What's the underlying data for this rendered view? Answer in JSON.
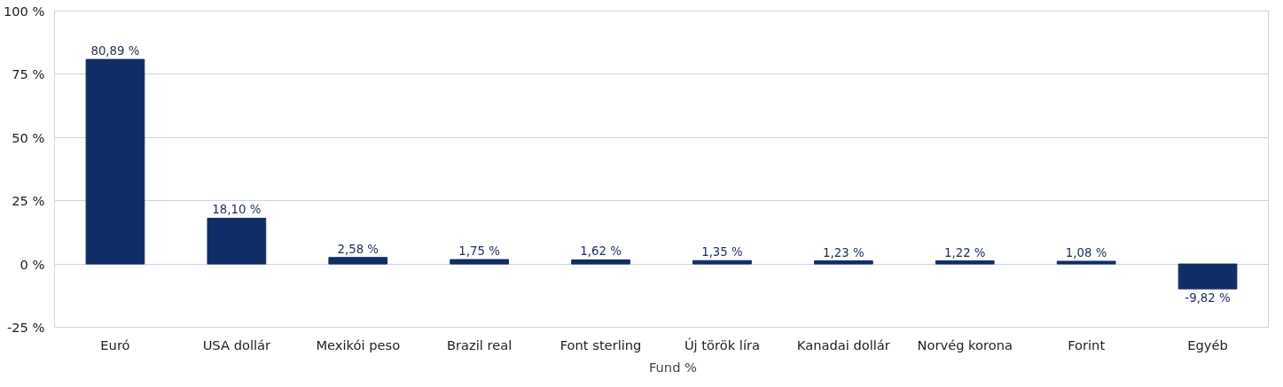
{
  "chart_data": {
    "type": "bar",
    "categories": [
      "Euró",
      "USA dollár",
      "Mexikói peso",
      "Brazil real",
      "Font sterling",
      "Új török líra",
      "Kanadai dollár",
      "Norvég korona",
      "Forint",
      "Egyéb"
    ],
    "series": [
      {
        "name": "Fund %",
        "color": "#112d65",
        "values": [
          80.89,
          18.1,
          2.58,
          1.75,
          1.62,
          1.35,
          1.23,
          1.22,
          1.08,
          -9.82
        ],
        "value_labels": [
          "80,89 %",
          "18,10 %",
          "2,58 %",
          "1,75 %",
          "1,62 %",
          "1,35 %",
          "1,23 %",
          "1,22 %",
          "1,08 %",
          "-9,82 %"
        ]
      }
    ],
    "ylim": [
      -25,
      100
    ],
    "yticks": [
      {
        "value": -25,
        "label": "-25 %"
      },
      {
        "value": 0,
        "label": "0 %"
      },
      {
        "value": 25,
        "label": "25 %"
      },
      {
        "value": 50,
        "label": "50 %"
      },
      {
        "value": 75,
        "label": "75 %"
      },
      {
        "value": 100,
        "label": "100 %"
      }
    ],
    "grid": "y",
    "legend": "bottom"
  }
}
